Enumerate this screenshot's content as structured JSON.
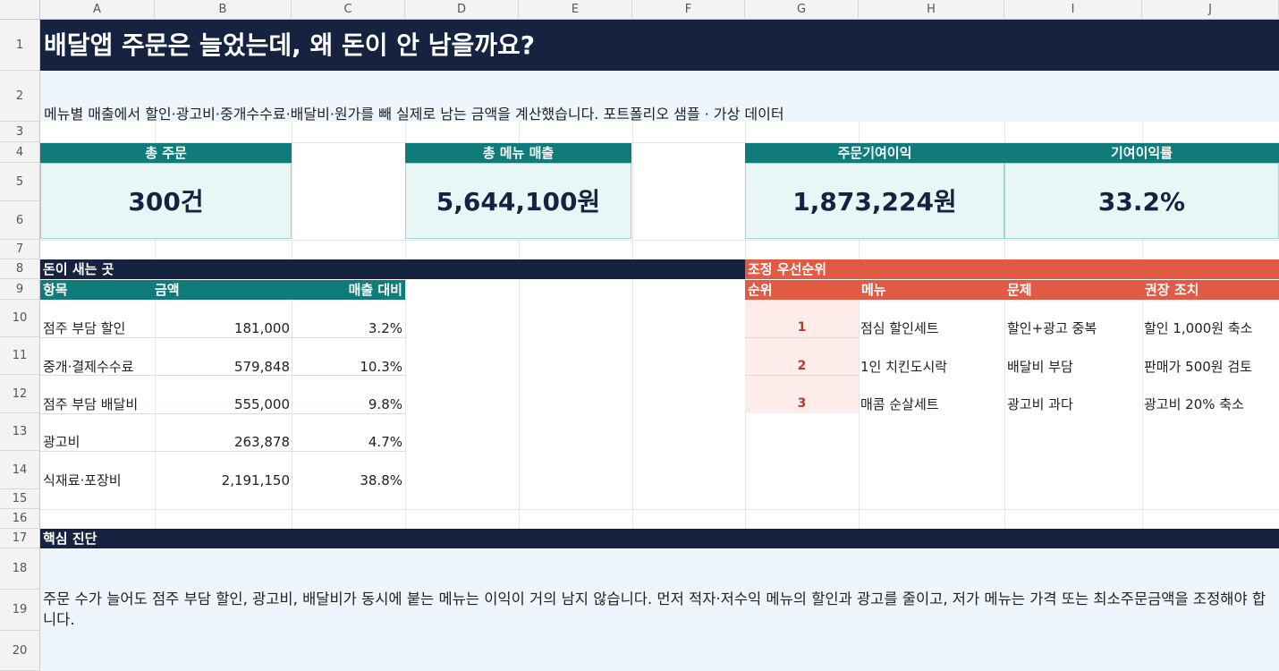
{
  "columns": [
    "A",
    "B",
    "C",
    "D",
    "E",
    "F",
    "G",
    "H",
    "I",
    "J"
  ],
  "rows": [
    "1",
    "2",
    "3",
    "4",
    "5",
    "6",
    "7",
    "8",
    "9",
    "10",
    "11",
    "12",
    "13",
    "14",
    "15",
    "16",
    "17",
    "18",
    "19",
    "20"
  ],
  "title": "배달앱 주문은 늘었는데, 왜 돈이 안 남을까요?",
  "subtitle": "메뉴별 매출에서 할인·광고비·중개수수료·배달비·원가를 빼 실제로 남는 금액을 계산했습니다. 포트폴리오 샘플 · 가상 데이터",
  "kpis": {
    "orders": {
      "label": "총 주문",
      "value": "300건"
    },
    "sales": {
      "label": "총 메뉴 매출",
      "value": "5,644,100원"
    },
    "profit": {
      "label": "주문기여이익",
      "value": "1,873,224원"
    },
    "margin": {
      "label": "기여이익률",
      "value": "33.2%"
    }
  },
  "leak": {
    "title": "돈이 새는 곳",
    "headers": {
      "item": "항목",
      "amount": "금액",
      "ratio": "매출 대비"
    },
    "rows": [
      {
        "item": "점주 부담 할인",
        "amount": "181,000",
        "ratio": "3.2%"
      },
      {
        "item": "중개·결제수수료",
        "amount": "579,848",
        "ratio": "10.3%"
      },
      {
        "item": "점주 부담 배달비",
        "amount": "555,000",
        "ratio": "9.8%"
      },
      {
        "item": "광고비",
        "amount": "263,878",
        "ratio": "4.7%"
      },
      {
        "item": "식재료·포장비",
        "amount": "2,191,150",
        "ratio": "38.8%"
      }
    ]
  },
  "priority": {
    "title": "조정 우선순위",
    "headers": {
      "rank": "순위",
      "menu": "메뉴",
      "problem": "문제",
      "action": "권장 조치"
    },
    "rows": [
      {
        "rank": "1",
        "menu": "점심 할인세트",
        "problem": "할인+광고 중복",
        "action": "할인 1,000원 축소"
      },
      {
        "rank": "2",
        "menu": "1인 치킨도시락",
        "problem": "배달비 부담",
        "action": "판매가 500원 검토"
      },
      {
        "rank": "3",
        "menu": "매콤 순살세트",
        "problem": "광고비 과다",
        "action": "광고비 20% 축소"
      }
    ]
  },
  "diagnosis": {
    "title": "핵심 진단",
    "text": "주문 수가 늘어도 점주 부담 할인, 광고비, 배달비가 동시에 붙는 메뉴는 이익이 거의 남지 않습니다. 먼저 적자·저수익 메뉴의 할인과 광고를 줄이고, 저가 메뉴는 가격 또는 최소주문금액을 조정해야 합니다."
  }
}
